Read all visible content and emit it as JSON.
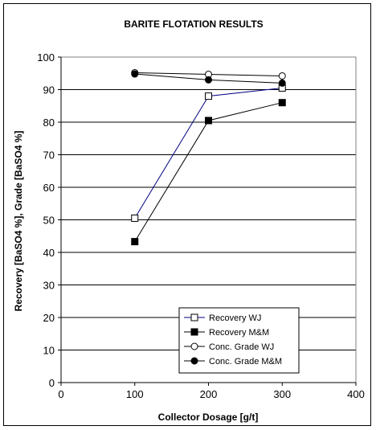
{
  "chart_data": {
    "type": "line",
    "title": "BARITE FLOTATION RESULTS",
    "xlabel": "Collector Dosage [g/t]",
    "ylabel": "Recovery [BaSO4 %], Grade [BaSO4 %]",
    "xlim": [
      0,
      400
    ],
    "ylim": [
      0,
      100
    ],
    "xticks": [
      0,
      100,
      200,
      300,
      400
    ],
    "yticks": [
      0,
      10,
      20,
      30,
      40,
      50,
      60,
      70,
      80,
      90,
      100
    ],
    "grid": "horizontal",
    "legend_position": "bottom-right",
    "series": [
      {
        "name": "Recovery WJ",
        "marker": "open-square",
        "line_color": "#000080",
        "x": [
          100,
          200,
          300
        ],
        "y": [
          50.5,
          88,
          90.5
        ]
      },
      {
        "name": "Recovery M&M",
        "marker": "filled-square",
        "line_color": "#000000",
        "x": [
          100,
          200,
          300
        ],
        "y": [
          43.3,
          80.5,
          86
        ]
      },
      {
        "name": "Conc. Grade WJ",
        "marker": "open-circle",
        "line_color": "#000000",
        "x": [
          100,
          200,
          300
        ],
        "y": [
          95.2,
          94.7,
          94.2
        ]
      },
      {
        "name": "Conc. Grade M&M",
        "marker": "filled-circle",
        "line_color": "#000000",
        "x": [
          100,
          200,
          300
        ],
        "y": [
          94.8,
          93,
          92
        ]
      }
    ]
  }
}
